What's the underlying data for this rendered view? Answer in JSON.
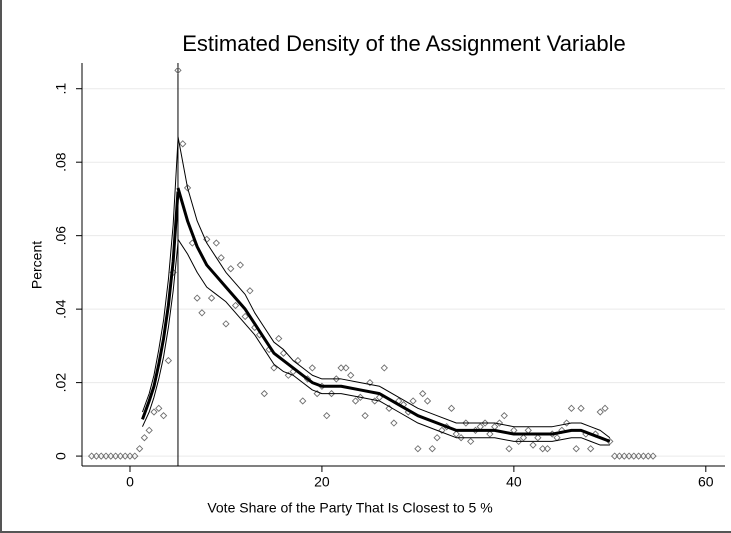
{
  "chart_data": {
    "type": "density-fit",
    "title": "Estimated Density of the Assignment Variable",
    "x_label": "Vote Share of the Party That Is Closest to 5 %",
    "y_label": "Percent",
    "xlim": [
      -5,
      62
    ],
    "ylim": [
      -0.0027,
      0.107
    ],
    "xticks": [
      0,
      20,
      40,
      60
    ],
    "yticks": [
      0,
      {
        "value": 0.02,
        "label": ".02"
      },
      {
        "value": 0.04,
        "label": ".04"
      },
      {
        "value": 0.06,
        "label": ".06"
      },
      {
        "value": 0.08,
        "label": ".08"
      },
      {
        "value": 0.1,
        "label": ".1"
      }
    ],
    "grid": true,
    "cutoff": 5,
    "scatter": {
      "color": "#6e6e6e",
      "x": [
        -4,
        -3.5,
        -3,
        -2.5,
        -2,
        -1.5,
        -1,
        -0.5,
        0,
        0.5,
        1,
        1.5,
        2,
        2.5,
        3,
        3.5,
        4,
        4.5,
        5,
        5.5,
        6,
        6.5,
        7,
        7.5,
        8,
        8.5,
        9,
        9.5,
        10,
        10.5,
        11,
        11.5,
        12,
        12.5,
        13,
        13.5,
        14,
        14.5,
        15,
        15.5,
        16,
        16.5,
        17,
        17.5,
        18,
        18.5,
        19,
        19.5,
        20,
        20.5,
        21,
        21.5,
        22,
        22.5,
        23,
        23.5,
        24,
        24.5,
        25,
        25.5,
        26,
        26.5,
        27,
        27.5,
        28,
        28.5,
        29,
        29.5,
        30,
        30.5,
        31,
        31.5,
        32,
        32.5,
        33,
        33.5,
        34,
        34.5,
        35,
        35.5,
        36,
        36.5,
        37,
        37.5,
        38,
        38.5,
        39,
        39.5,
        40,
        40.5,
        41,
        41.5,
        42,
        42.5,
        43,
        43.5,
        44,
        44.5,
        45,
        45.5,
        46,
        46.5,
        47,
        47.5,
        48,
        48.5,
        49,
        49.5,
        50,
        50.5,
        51,
        51.5,
        52,
        52.5,
        53,
        53.5,
        54,
        54.5
      ],
      "values": [
        0,
        0,
        0,
        0,
        0,
        0,
        0,
        0,
        0,
        0,
        0.002,
        0.005,
        0.007,
        0.012,
        0.013,
        0.011,
        0.026,
        0.05,
        0.105,
        0.085,
        0.073,
        0.058,
        0.043,
        0.039,
        0.059,
        0.043,
        0.058,
        0.054,
        0.036,
        0.051,
        0.041,
        0.052,
        0.038,
        0.045,
        0.035,
        0.033,
        0.017,
        0.029,
        0.024,
        0.032,
        0.028,
        0.022,
        0.023,
        0.026,
        0.015,
        0.021,
        0.024,
        0.017,
        0.019,
        0.011,
        0.017,
        0.021,
        0.024,
        0.024,
        0.022,
        0.015,
        0.016,
        0.011,
        0.02,
        0.015,
        0.016,
        0.024,
        0.013,
        0.009,
        0.015,
        0.014,
        0.012,
        0.015,
        0.002,
        0.017,
        0.015,
        0.002,
        0.005,
        0.007,
        0.008,
        0.013,
        0.006,
        0.005,
        0.009,
        0.004,
        0.007,
        0.008,
        0.009,
        0.006,
        0.008,
        0.009,
        0.011,
        0.002,
        0.007,
        0.004,
        0.005,
        0.007,
        0.003,
        0.005,
        0.002,
        0.002,
        0.006,
        0.005,
        0.007,
        0.009,
        0.013,
        0.002,
        0.013,
        0.006,
        0.002,
        0.006,
        0.012,
        0.013,
        0.004,
        0,
        0,
        0,
        0,
        0,
        0,
        0,
        0,
        0
      ]
    },
    "fits": [
      {
        "color": "#000000",
        "x": [
          1.3,
          2,
          2.5,
          3,
          3.5,
          4,
          4.5,
          5
        ],
        "values": [
          0.01,
          0.015,
          0.019,
          0.025,
          0.032,
          0.041,
          0.053,
          0.072
        ],
        "upper": [
          0.012,
          0.017,
          0.022,
          0.029,
          0.037,
          0.048,
          0.063,
          0.086
        ],
        "lower": [
          0.008,
          0.012,
          0.016,
          0.021,
          0.027,
          0.035,
          0.045,
          0.058
        ]
      },
      {
        "color": "#000000",
        "x": [
          5,
          6,
          7,
          8,
          9,
          10,
          11,
          12,
          13,
          14,
          15,
          16,
          17,
          18,
          19,
          20,
          22,
          24,
          26,
          28,
          30,
          32,
          34,
          36,
          38,
          40,
          42,
          44,
          46,
          47,
          48,
          49,
          50
        ],
        "values": [
          0.073,
          0.064,
          0.057,
          0.052,
          0.049,
          0.046,
          0.043,
          0.04,
          0.036,
          0.032,
          0.028,
          0.026,
          0.024,
          0.022,
          0.02,
          0.019,
          0.019,
          0.018,
          0.017,
          0.014,
          0.011,
          0.009,
          0.007,
          0.007,
          0.007,
          0.006,
          0.006,
          0.006,
          0.007,
          0.007,
          0.006,
          0.005,
          0.004
        ],
        "upper": [
          0.087,
          0.073,
          0.064,
          0.058,
          0.054,
          0.05,
          0.047,
          0.044,
          0.039,
          0.035,
          0.031,
          0.029,
          0.026,
          0.024,
          0.022,
          0.021,
          0.021,
          0.02,
          0.019,
          0.016,
          0.013,
          0.011,
          0.009,
          0.009,
          0.009,
          0.008,
          0.008,
          0.008,
          0.009,
          0.009,
          0.008,
          0.007,
          0.005
        ],
        "lower": [
          0.059,
          0.055,
          0.05,
          0.046,
          0.044,
          0.042,
          0.039,
          0.036,
          0.033,
          0.029,
          0.025,
          0.023,
          0.022,
          0.02,
          0.018,
          0.017,
          0.017,
          0.016,
          0.015,
          0.012,
          0.009,
          0.007,
          0.005,
          0.005,
          0.005,
          0.004,
          0.004,
          0.004,
          0.005,
          0.005,
          0.004,
          0.003,
          0.003
        ]
      }
    ]
  }
}
